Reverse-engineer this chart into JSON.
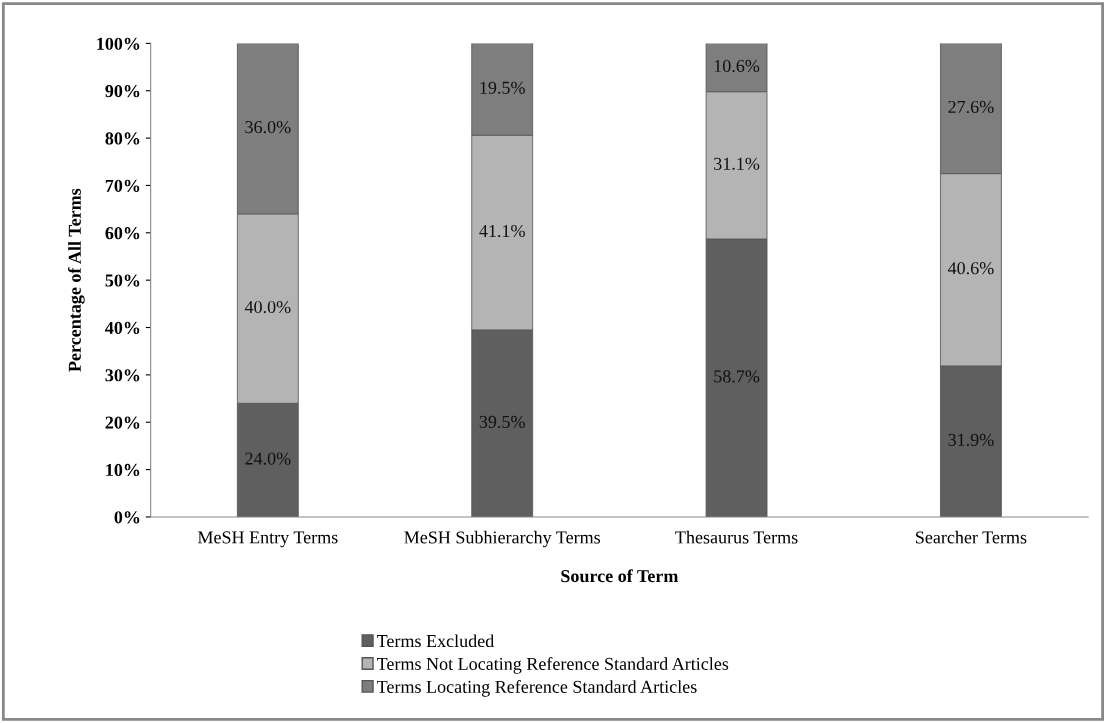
{
  "chart_data": {
    "type": "bar",
    "stacked": true,
    "xlabel": "Source of Term",
    "ylabel": "Percentage of All Terms",
    "categories": [
      "MeSH Entry Terms",
      "MeSH Subhierarchy Terms",
      "Thesaurus Terms",
      "Searcher Terms"
    ],
    "series": [
      {
        "name": "Terms Excluded",
        "color": "#5f5f5f",
        "values": [
          24.0,
          39.5,
          58.7,
          31.9
        ],
        "value_labels": [
          "24.0%",
          "39.5%",
          "58.7%",
          "31.9%"
        ]
      },
      {
        "name": "Terms Not Locating Reference Standard Articles",
        "color": "#b4b4b4",
        "values": [
          40.0,
          41.1,
          31.1,
          40.6
        ],
        "value_labels": [
          "40.0%",
          "41.1%",
          "31.1%",
          "40.6%"
        ]
      },
      {
        "name": "Terms Locating Reference Standard Articles",
        "color": "#7e7e7e",
        "values": [
          36.0,
          19.5,
          10.6,
          27.6
        ],
        "value_labels": [
          "36.0%",
          "19.5%",
          "10.6%",
          "27.6%"
        ]
      }
    ],
    "ylim": [
      0,
      100
    ],
    "yticks": [
      {
        "value": 0,
        "label": "0%"
      },
      {
        "value": 10,
        "label": "10%"
      },
      {
        "value": 20,
        "label": "20%"
      },
      {
        "value": 30,
        "label": "30%"
      },
      {
        "value": 40,
        "label": "40%"
      },
      {
        "value": 50,
        "label": "50%"
      },
      {
        "value": 60,
        "label": "60%"
      },
      {
        "value": 70,
        "label": "70%"
      },
      {
        "value": 80,
        "label": "80%"
      },
      {
        "value": 90,
        "label": "90%"
      },
      {
        "value": 100,
        "label": "100%"
      }
    ],
    "grid": false,
    "legend": "bottom"
  }
}
